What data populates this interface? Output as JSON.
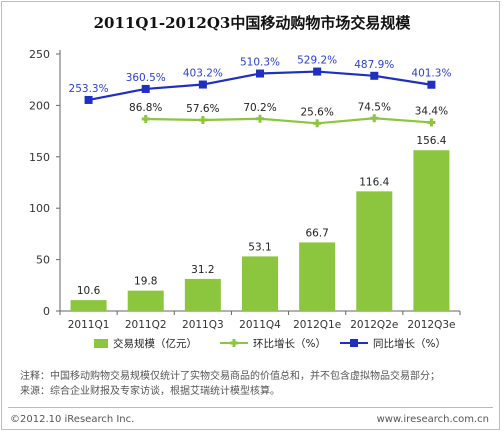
{
  "chart_data": {
    "type": "bar",
    "title": "2011Q1-2012Q3中国移动购物市场交易规模",
    "categories": [
      "2011Q1",
      "2011Q2",
      "2011Q3",
      "2011Q4",
      "2012Q1e",
      "2012Q2e",
      "2012Q3e"
    ],
    "ylim": [
      0,
      250
    ],
    "yticks": [
      0,
      50,
      100,
      150,
      200,
      250
    ],
    "series": [
      {
        "name": "交易规模（亿元）",
        "kind": "bar",
        "color": "#8cc63f",
        "values": [
          10.6,
          19.8,
          31.2,
          53.1,
          66.7,
          116.4,
          156.4
        ],
        "labels": [
          "10.6",
          "19.8",
          "31.2",
          "53.1",
          "66.7",
          "116.4",
          "156.4"
        ]
      },
      {
        "name": "环比增长（%）",
        "kind": "line",
        "color": "#8cc63f",
        "values": [
          null,
          186.8,
          185.8,
          187.0,
          182.6,
          187.5,
          183.4
        ],
        "labels": [
          "",
          "86.8%",
          "57.6%",
          "70.2%",
          "25.6%",
          "74.5%",
          "34.4%"
        ]
      },
      {
        "name": "同比增长（%）",
        "kind": "line",
        "color": "#1f2fbf",
        "values": [
          205.3,
          216.0,
          220.3,
          231.0,
          232.9,
          228.8,
          220.1
        ],
        "labels": [
          "253.3%",
          "360.5%",
          "403.2%",
          "510.3%",
          "529.2%",
          "487.9%",
          "401.3%"
        ]
      }
    ],
    "grid": false,
    "legend_position": "bottom"
  },
  "notes": {
    "line1": "注释：中国移动购物交易规模仅统计了实物交易商品的价值总和，并不包含虚拟物品交易部分；",
    "line2": "来源：综合企业财报及专家访谈，根据艾瑞统计模型核算。"
  },
  "footer": {
    "copyright": "©2012.10 iResearch Inc.",
    "website": "www.iresearch.com.cn"
  },
  "colors": {
    "bar": "#8cc63f",
    "qoq_line": "#8cc63f",
    "yoy_line": "#1f2fbf",
    "axis": "#666666",
    "label_blue": "#2a3fd0"
  }
}
